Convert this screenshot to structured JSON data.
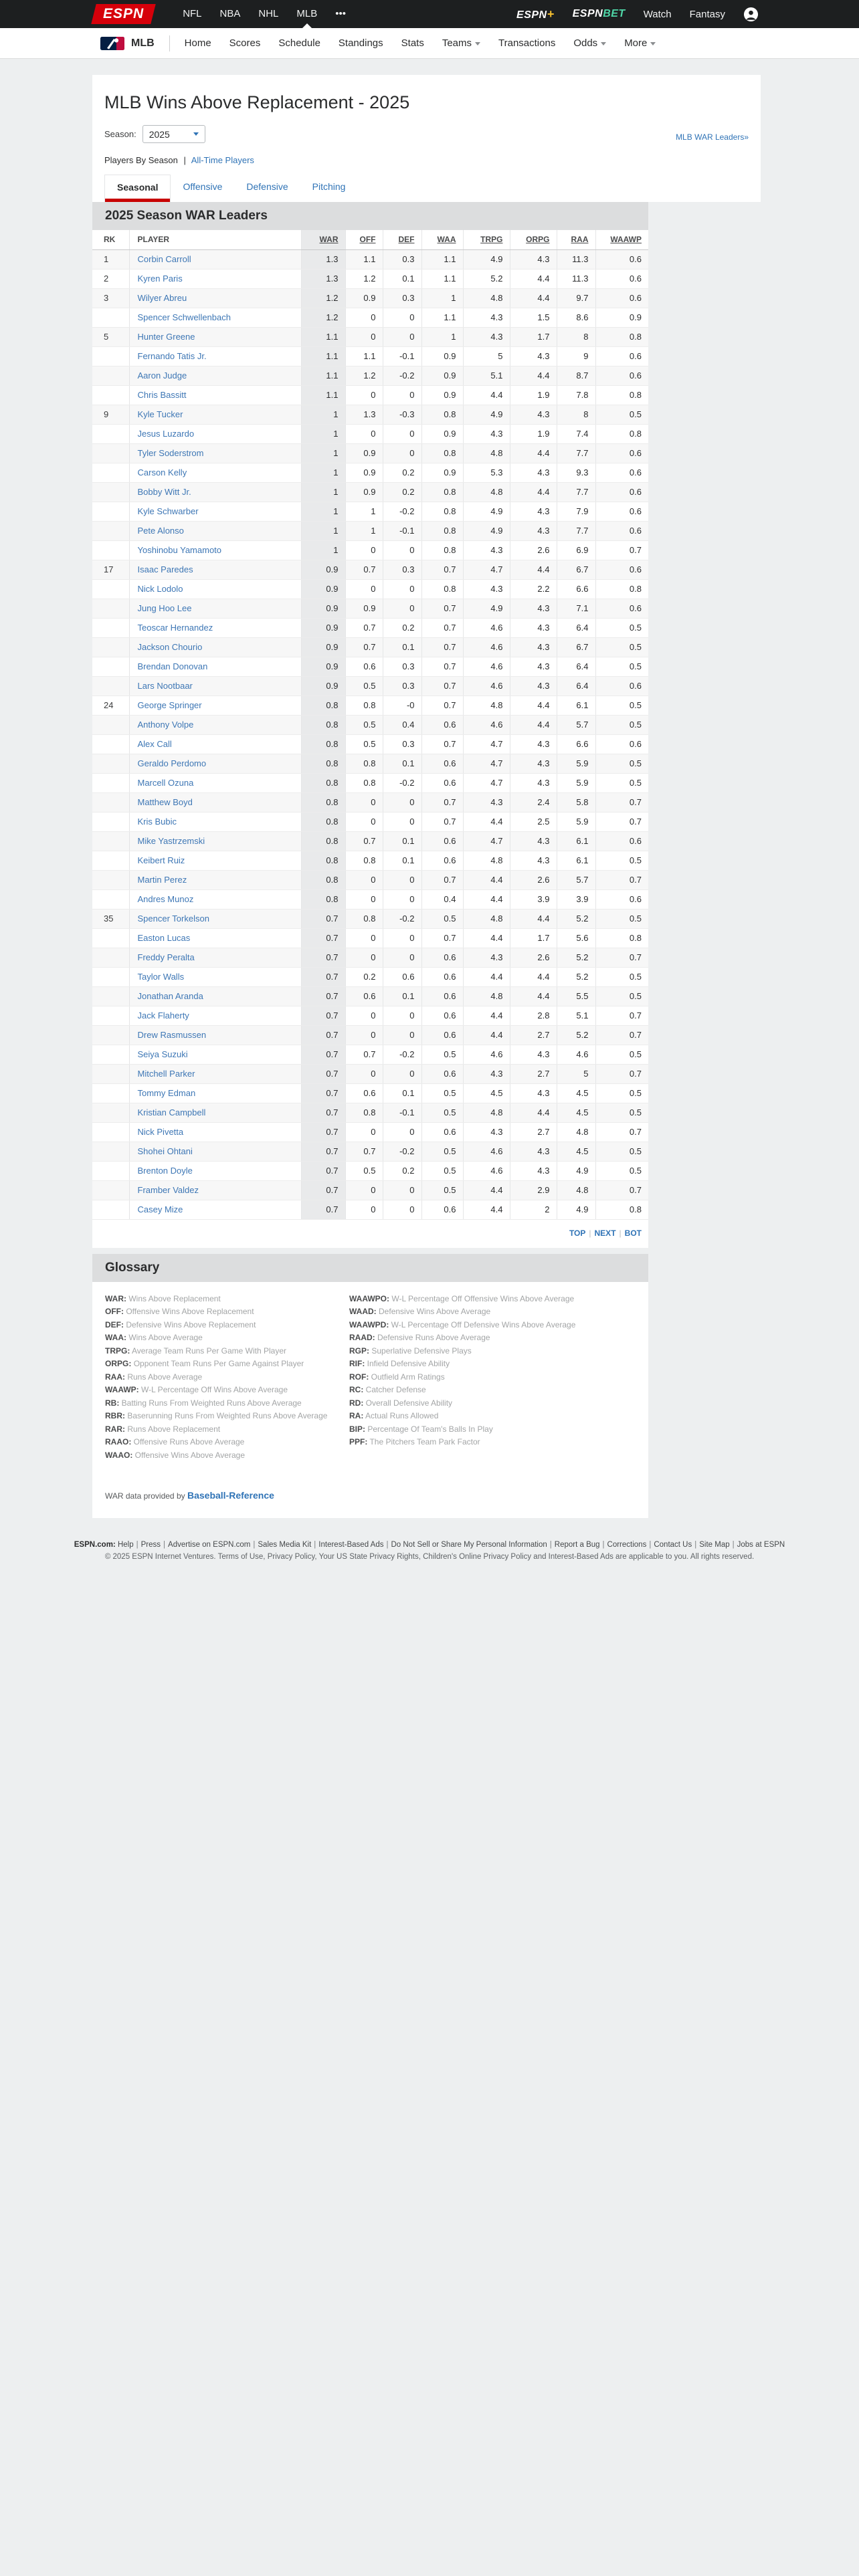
{
  "topnav": {
    "sports": [
      "NFL",
      "NBA",
      "NHL",
      "MLB",
      "•••"
    ],
    "active_sport": "MLB",
    "espn_plus": {
      "text": "ESPN",
      "plus": "+"
    },
    "espn_bet": {
      "text": "ESPN",
      "bet": "BET"
    },
    "watch": "Watch",
    "fantasy": "Fantasy"
  },
  "subnav": {
    "league": "MLB",
    "items": [
      {
        "label": "Home"
      },
      {
        "label": "Scores"
      },
      {
        "label": "Schedule"
      },
      {
        "label": "Standings"
      },
      {
        "label": "Stats"
      },
      {
        "label": "Teams",
        "chevron": true
      },
      {
        "label": "Transactions"
      },
      {
        "label": "Odds",
        "chevron": true
      },
      {
        "label": "More",
        "chevron": true
      }
    ]
  },
  "page": {
    "title": "MLB Wins Above Replacement - 2025",
    "war_leaders_link": "MLB WAR Leaders»",
    "season_label": "Season:",
    "season_value": "2025",
    "players_by_season": "Players By Season",
    "divider": "|",
    "all_time_players": "All-Time Players",
    "tabs": [
      {
        "label": "Seasonal",
        "active": true
      },
      {
        "label": "Offensive",
        "active": false
      },
      {
        "label": "Defensive",
        "active": false
      },
      {
        "label": "Pitching",
        "active": false
      }
    ]
  },
  "table": {
    "section_title": "2025 Season WAR Leaders",
    "columns": [
      "RK",
      "PLAYER",
      "WAR",
      "OFF",
      "DEF",
      "WAA",
      "TRPG",
      "ORPG",
      "RAA",
      "WAAWP"
    ],
    "sorted_column": "WAR",
    "rows": [
      [
        "1",
        "Corbin Carroll",
        "1.3",
        "1.1",
        "0.3",
        "1.1",
        "4.9",
        "4.3",
        "11.3",
        "0.6"
      ],
      [
        "2",
        "Kyren Paris",
        "1.3",
        "1.2",
        "0.1",
        "1.1",
        "5.2",
        "4.4",
        "11.3",
        "0.6"
      ],
      [
        "3",
        "Wilyer Abreu",
        "1.2",
        "0.9",
        "0.3",
        "1",
        "4.8",
        "4.4",
        "9.7",
        "0.6"
      ],
      [
        "",
        "Spencer Schwellenbach",
        "1.2",
        "0",
        "0",
        "1.1",
        "4.3",
        "1.5",
        "8.6",
        "0.9"
      ],
      [
        "5",
        "Hunter Greene",
        "1.1",
        "0",
        "0",
        "1",
        "4.3",
        "1.7",
        "8",
        "0.8"
      ],
      [
        "",
        "Fernando Tatis Jr.",
        "1.1",
        "1.1",
        "-0.1",
        "0.9",
        "5",
        "4.3",
        "9",
        "0.6"
      ],
      [
        "",
        "Aaron Judge",
        "1.1",
        "1.2",
        "-0.2",
        "0.9",
        "5.1",
        "4.4",
        "8.7",
        "0.6"
      ],
      [
        "",
        "Chris Bassitt",
        "1.1",
        "0",
        "0",
        "0.9",
        "4.4",
        "1.9",
        "7.8",
        "0.8"
      ],
      [
        "9",
        "Kyle Tucker",
        "1",
        "1.3",
        "-0.3",
        "0.8",
        "4.9",
        "4.3",
        "8",
        "0.5"
      ],
      [
        "",
        "Jesus Luzardo",
        "1",
        "0",
        "0",
        "0.9",
        "4.3",
        "1.9",
        "7.4",
        "0.8"
      ],
      [
        "",
        "Tyler Soderstrom",
        "1",
        "0.9",
        "0",
        "0.8",
        "4.8",
        "4.4",
        "7.7",
        "0.6"
      ],
      [
        "",
        "Carson Kelly",
        "1",
        "0.9",
        "0.2",
        "0.9",
        "5.3",
        "4.3",
        "9.3",
        "0.6"
      ],
      [
        "",
        "Bobby Witt Jr.",
        "1",
        "0.9",
        "0.2",
        "0.8",
        "4.8",
        "4.4",
        "7.7",
        "0.6"
      ],
      [
        "",
        "Kyle Schwarber",
        "1",
        "1",
        "-0.2",
        "0.8",
        "4.9",
        "4.3",
        "7.9",
        "0.6"
      ],
      [
        "",
        "Pete Alonso",
        "1",
        "1",
        "-0.1",
        "0.8",
        "4.9",
        "4.3",
        "7.7",
        "0.6"
      ],
      [
        "",
        "Yoshinobu Yamamoto",
        "1",
        "0",
        "0",
        "0.8",
        "4.3",
        "2.6",
        "6.9",
        "0.7"
      ],
      [
        "17",
        "Isaac Paredes",
        "0.9",
        "0.7",
        "0.3",
        "0.7",
        "4.7",
        "4.4",
        "6.7",
        "0.6"
      ],
      [
        "",
        "Nick Lodolo",
        "0.9",
        "0",
        "0",
        "0.8",
        "4.3",
        "2.2",
        "6.6",
        "0.8"
      ],
      [
        "",
        "Jung Hoo Lee",
        "0.9",
        "0.9",
        "0",
        "0.7",
        "4.9",
        "4.3",
        "7.1",
        "0.6"
      ],
      [
        "",
        "Teoscar Hernandez",
        "0.9",
        "0.7",
        "0.2",
        "0.7",
        "4.6",
        "4.3",
        "6.4",
        "0.5"
      ],
      [
        "",
        "Jackson Chourio",
        "0.9",
        "0.7",
        "0.1",
        "0.7",
        "4.6",
        "4.3",
        "6.7",
        "0.5"
      ],
      [
        "",
        "Brendan Donovan",
        "0.9",
        "0.6",
        "0.3",
        "0.7",
        "4.6",
        "4.3",
        "6.4",
        "0.5"
      ],
      [
        "",
        "Lars Nootbaar",
        "0.9",
        "0.5",
        "0.3",
        "0.7",
        "4.6",
        "4.3",
        "6.4",
        "0.6"
      ],
      [
        "24",
        "George Springer",
        "0.8",
        "0.8",
        "-0",
        "0.7",
        "4.8",
        "4.4",
        "6.1",
        "0.5"
      ],
      [
        "",
        "Anthony Volpe",
        "0.8",
        "0.5",
        "0.4",
        "0.6",
        "4.6",
        "4.4",
        "5.7",
        "0.5"
      ],
      [
        "",
        "Alex Call",
        "0.8",
        "0.5",
        "0.3",
        "0.7",
        "4.7",
        "4.3",
        "6.6",
        "0.6"
      ],
      [
        "",
        "Geraldo Perdomo",
        "0.8",
        "0.8",
        "0.1",
        "0.6",
        "4.7",
        "4.3",
        "5.9",
        "0.5"
      ],
      [
        "",
        "Marcell Ozuna",
        "0.8",
        "0.8",
        "-0.2",
        "0.6",
        "4.7",
        "4.3",
        "5.9",
        "0.5"
      ],
      [
        "",
        "Matthew Boyd",
        "0.8",
        "0",
        "0",
        "0.7",
        "4.3",
        "2.4",
        "5.8",
        "0.7"
      ],
      [
        "",
        "Kris Bubic",
        "0.8",
        "0",
        "0",
        "0.7",
        "4.4",
        "2.5",
        "5.9",
        "0.7"
      ],
      [
        "",
        "Mike Yastrzemski",
        "0.8",
        "0.7",
        "0.1",
        "0.6",
        "4.7",
        "4.3",
        "6.1",
        "0.6"
      ],
      [
        "",
        "Keibert Ruiz",
        "0.8",
        "0.8",
        "0.1",
        "0.6",
        "4.8",
        "4.3",
        "6.1",
        "0.5"
      ],
      [
        "",
        "Martin Perez",
        "0.8",
        "0",
        "0",
        "0.7",
        "4.4",
        "2.6",
        "5.7",
        "0.7"
      ],
      [
        "",
        "Andres Munoz",
        "0.8",
        "0",
        "0",
        "0.4",
        "4.4",
        "3.9",
        "3.9",
        "0.6"
      ],
      [
        "35",
        "Spencer Torkelson",
        "0.7",
        "0.8",
        "-0.2",
        "0.5",
        "4.8",
        "4.4",
        "5.2",
        "0.5"
      ],
      [
        "",
        "Easton Lucas",
        "0.7",
        "0",
        "0",
        "0.7",
        "4.4",
        "1.7",
        "5.6",
        "0.8"
      ],
      [
        "",
        "Freddy Peralta",
        "0.7",
        "0",
        "0",
        "0.6",
        "4.3",
        "2.6",
        "5.2",
        "0.7"
      ],
      [
        "",
        "Taylor Walls",
        "0.7",
        "0.2",
        "0.6",
        "0.6",
        "4.4",
        "4.4",
        "5.2",
        "0.5"
      ],
      [
        "",
        "Jonathan Aranda",
        "0.7",
        "0.6",
        "0.1",
        "0.6",
        "4.8",
        "4.4",
        "5.5",
        "0.5"
      ],
      [
        "",
        "Jack Flaherty",
        "0.7",
        "0",
        "0",
        "0.6",
        "4.4",
        "2.8",
        "5.1",
        "0.7"
      ],
      [
        "",
        "Drew Rasmussen",
        "0.7",
        "0",
        "0",
        "0.6",
        "4.4",
        "2.7",
        "5.2",
        "0.7"
      ],
      [
        "",
        "Seiya Suzuki",
        "0.7",
        "0.7",
        "-0.2",
        "0.5",
        "4.6",
        "4.3",
        "4.6",
        "0.5"
      ],
      [
        "",
        "Mitchell Parker",
        "0.7",
        "0",
        "0",
        "0.6",
        "4.3",
        "2.7",
        "5",
        "0.7"
      ],
      [
        "",
        "Tommy Edman",
        "0.7",
        "0.6",
        "0.1",
        "0.5",
        "4.5",
        "4.3",
        "4.5",
        "0.5"
      ],
      [
        "",
        "Kristian Campbell",
        "0.7",
        "0.8",
        "-0.1",
        "0.5",
        "4.8",
        "4.4",
        "4.5",
        "0.5"
      ],
      [
        "",
        "Nick Pivetta",
        "0.7",
        "0",
        "0",
        "0.6",
        "4.3",
        "2.7",
        "4.8",
        "0.7"
      ],
      [
        "",
        "Shohei Ohtani",
        "0.7",
        "0.7",
        "-0.2",
        "0.5",
        "4.6",
        "4.3",
        "4.5",
        "0.5"
      ],
      [
        "",
        "Brenton Doyle",
        "0.7",
        "0.5",
        "0.2",
        "0.5",
        "4.6",
        "4.3",
        "4.9",
        "0.5"
      ],
      [
        "",
        "Framber Valdez",
        "0.7",
        "0",
        "0",
        "0.5",
        "4.4",
        "2.9",
        "4.8",
        "0.7"
      ],
      [
        "",
        "Casey Mize",
        "0.7",
        "0",
        "0",
        "0.6",
        "4.4",
        "2",
        "4.9",
        "0.8"
      ]
    ],
    "pagination": [
      "TOP",
      "NEXT",
      "BOT"
    ]
  },
  "glossary": {
    "title": "Glossary",
    "left": [
      {
        "abbr": "WAR:",
        "desc": "Wins Above Replacement"
      },
      {
        "abbr": "OFF:",
        "desc": "Offensive Wins Above Replacement"
      },
      {
        "abbr": "DEF:",
        "desc": "Defensive Wins Above Replacement"
      },
      {
        "abbr": "WAA:",
        "desc": "Wins Above Average"
      },
      {
        "abbr": "TRPG:",
        "desc": "Average Team Runs Per Game With Player"
      },
      {
        "abbr": "ORPG:",
        "desc": "Opponent Team Runs Per Game Against Player"
      },
      {
        "abbr": "RAA:",
        "desc": "Runs Above Average"
      },
      {
        "abbr": "WAAWP:",
        "desc": "W-L Percentage Off Wins Above Average"
      },
      {
        "abbr": "RB:",
        "desc": "Batting Runs From Weighted Runs Above Average"
      },
      {
        "abbr": "RBR:",
        "desc": "Baserunning Runs From Weighted Runs Above Average"
      },
      {
        "abbr": "RAR:",
        "desc": "Runs Above Replacement"
      },
      {
        "abbr": "RAAO:",
        "desc": "Offensive Runs Above Average"
      },
      {
        "abbr": "WAAO:",
        "desc": "Offensive Wins Above Average"
      }
    ],
    "right": [
      {
        "abbr": "WAAWPO:",
        "desc": "W-L Percentage Off Offensive Wins Above Average"
      },
      {
        "abbr": "WAAD:",
        "desc": "Defensive Wins Above Average"
      },
      {
        "abbr": "WAAWPD:",
        "desc": "W-L Percentage Off Defensive Wins Above Average"
      },
      {
        "abbr": "RAAD:",
        "desc": "Defensive Runs Above Average"
      },
      {
        "abbr": "RGP:",
        "desc": "Superlative Defensive Plays"
      },
      {
        "abbr": "RIF:",
        "desc": "Infield Defensive Ability"
      },
      {
        "abbr": "ROF:",
        "desc": "Outfield Arm Ratings"
      },
      {
        "abbr": "RC:",
        "desc": "Catcher Defense"
      },
      {
        "abbr": "RD:",
        "desc": "Overall Defensive Ability"
      },
      {
        "abbr": "RA:",
        "desc": "Actual Runs Allowed"
      },
      {
        "abbr": "BIP:",
        "desc": "Percentage Of Team's Balls In Play"
      },
      {
        "abbr": "PPF:",
        "desc": "The Pitchers Team Park Factor"
      }
    ],
    "credit_prefix": "WAR data provided by",
    "credit_link": "Baseball-Reference"
  },
  "footer": {
    "prefix": "ESPN.com:",
    "links": [
      "Help",
      "Press",
      "Advertise on ESPN.com",
      "Sales Media Kit",
      "Interest-Based Ads",
      "Do Not Sell or Share My Personal Information",
      "Report a Bug",
      "Corrections",
      "Contact Us",
      "Site Map",
      "Jobs at ESPN"
    ],
    "copyright": "© 2025 ESPN Internet Ventures. Terms of Use, Privacy Policy, Your US State Privacy Rights, Children's Online Privacy Policy and Interest-Based Ads are applicable to you. All rights reserved."
  },
  "colors": {
    "topbar": "#1d1f20",
    "espn_red": "#d6000a",
    "accent_red": "#c80000",
    "link_blue": "#2f73b6",
    "player_blue": "#3e77b5",
    "band_gray": "#dcddde",
    "page_bg": "#edeff0",
    "bet_teal": "#4fd6a7",
    "plus_gold": "#f5bf30"
  }
}
